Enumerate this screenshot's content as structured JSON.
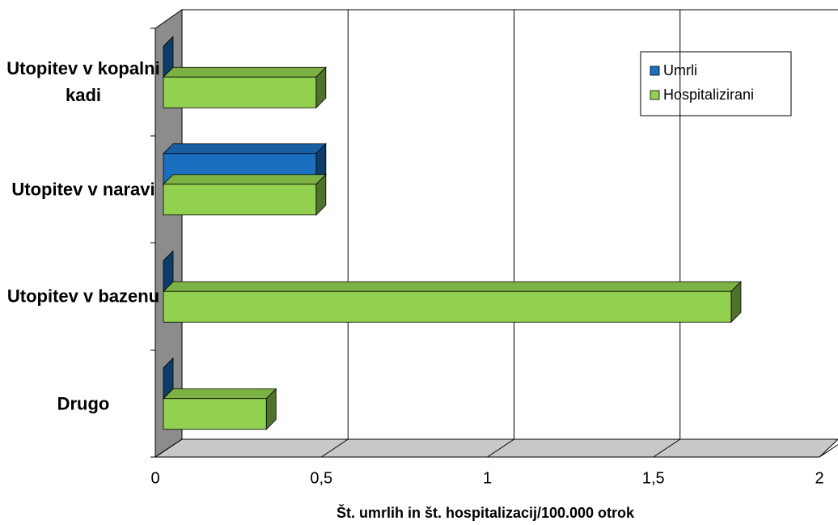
{
  "chart_data": {
    "type": "bar3d-horizontal",
    "categories": [
      "Utopitev v kopalni kadi",
      "Utopitev v naravi",
      "Utopitev v bazenu",
      "Drugo"
    ],
    "series": [
      {
        "name": "Umrli",
        "color": "#1b6fc0",
        "values": [
          0,
          0.46,
          0,
          0
        ]
      },
      {
        "name": "Hospitalizirani",
        "color": "#92d050",
        "values": [
          0.46,
          0.46,
          1.71,
          0.31
        ]
      }
    ],
    "xlabel": "Št. umrlih in št. hospitalizacij/100.000 otrok",
    "xlim": [
      0,
      2
    ],
    "xticks": [
      0,
      {
        "value": 0.5,
        "label": "0,5"
      },
      1,
      {
        "value": 1.5,
        "label": "1,5"
      },
      2
    ],
    "grid": true,
    "legend": "top-right"
  }
}
